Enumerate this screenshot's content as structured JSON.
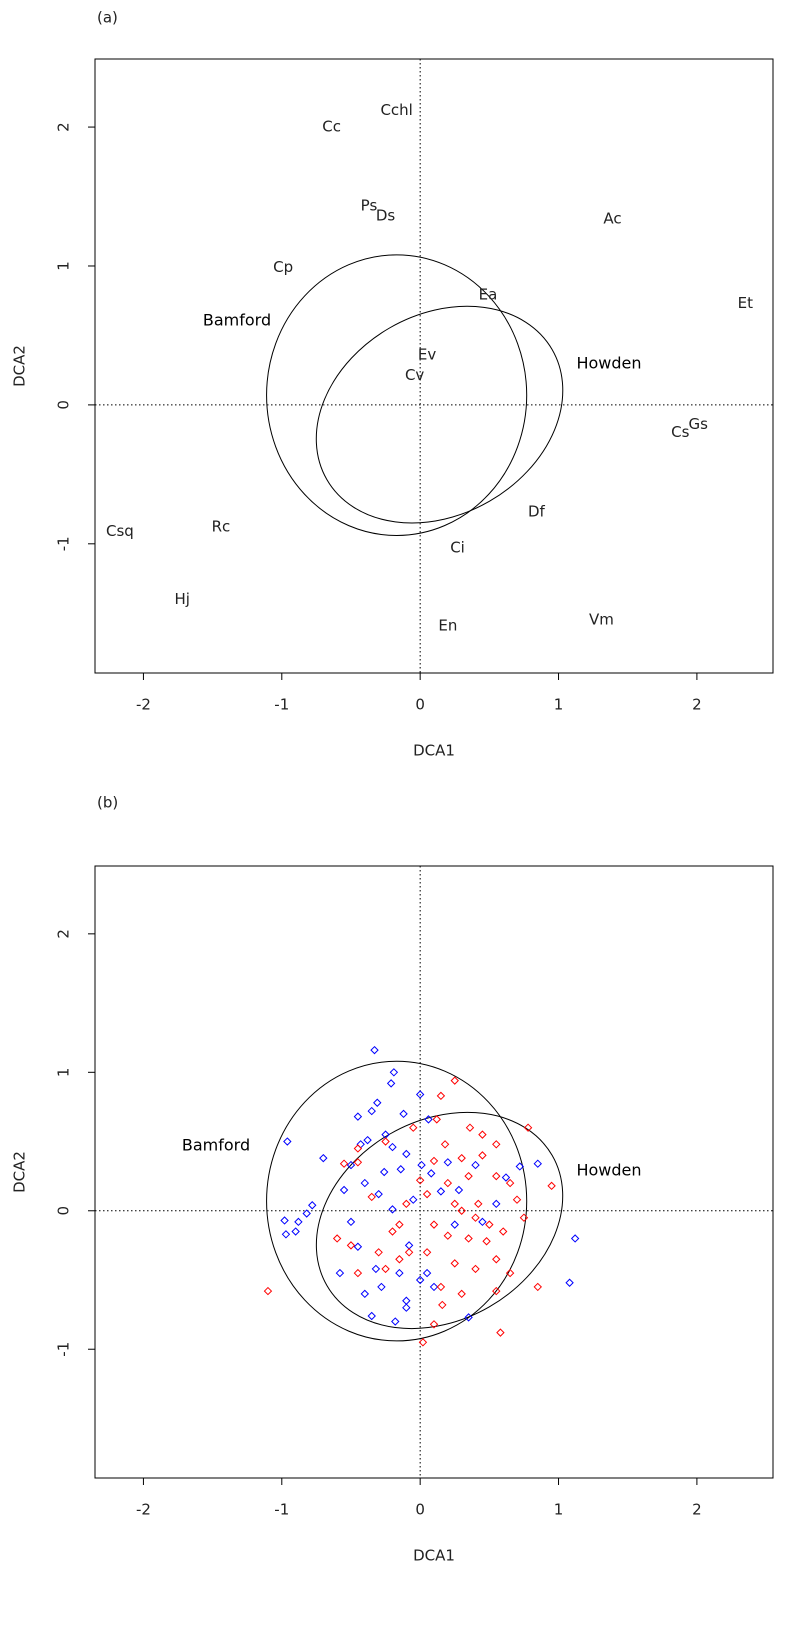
{
  "chart_data": [
    {
      "type": "text-scatter",
      "panel_label": "(a)",
      "xlabel": "DCA1",
      "ylabel": "DCA2",
      "xlim": [
        -2.35,
        2.55
      ],
      "ylim": [
        -1.93,
        2.49
      ],
      "xticks": [
        -2,
        -1,
        0,
        1,
        2
      ],
      "yticks": [
        -1,
        0,
        1,
        2
      ],
      "hline": 0,
      "vline": 0,
      "labels": [
        "Cchl",
        "Cc",
        "Ps",
        "Ds",
        "Ac",
        "Cp",
        "Ea",
        "Et",
        "Ev",
        "Cv",
        "Gs",
        "Cs",
        "Df",
        "Csq",
        "Rc",
        "Ci",
        "Hj",
        "Vm",
        "En"
      ],
      "x": [
        -0.17,
        -0.64,
        -0.37,
        -0.25,
        1.39,
        -0.99,
        0.49,
        2.35,
        0.05,
        -0.04,
        2.01,
        1.88,
        0.84,
        -2.17,
        -1.44,
        0.27,
        -1.72,
        1.31,
        0.2
      ],
      "y": [
        2.12,
        2.0,
        1.43,
        1.36,
        1.34,
        0.99,
        0.79,
        0.73,
        0.36,
        0.21,
        -0.14,
        -0.2,
        -0.77,
        -0.91,
        -0.88,
        -1.03,
        -1.4,
        -1.55,
        -1.59
      ],
      "ellipses": [
        {
          "label": "Bamford",
          "center": [
            -0.17,
            0.07
          ],
          "radii": [
            0.94,
            1.01
          ],
          "angle": 0
        },
        {
          "label": "Howden",
          "center": [
            0.14,
            -0.07
          ],
          "radii": [
            0.94,
            0.72
          ],
          "angle": 30
        }
      ]
    },
    {
      "type": "scatter",
      "panel_label": "(b)",
      "xlabel": "DCA1",
      "ylabel": "DCA2",
      "xlim": [
        -2.35,
        2.55
      ],
      "ylim": [
        -1.93,
        2.49
      ],
      "xticks": [
        -2,
        -1,
        0,
        1,
        2
      ],
      "yticks": [
        -1,
        0,
        1,
        2
      ],
      "hline": 0,
      "vline": 0,
      "series": [
        {
          "color": "#0000ff",
          "x": [
            -0.33,
            -0.19,
            -0.21,
            0,
            -0.31,
            -0.12,
            -0.45,
            -0.35,
            0.06,
            -0.38,
            -0.43,
            -0.2,
            -0.1,
            0.01,
            -0.96,
            -0.7,
            -0.5,
            -0.26,
            -0.14,
            0.08,
            -0.55,
            -0.4,
            -0.3,
            -0.78,
            -0.82,
            -0.88,
            -0.98,
            -0.97,
            -0.9,
            -0.5,
            -0.2,
            -0.05,
            0.15,
            0.28,
            0.4,
            0.62,
            0.72,
            0.85,
            0.55,
            0.45,
            1.12,
            1.08,
            -0.45,
            -0.32,
            -0.28,
            -0.15,
            0,
            0.05,
            0.1,
            -0.1,
            -0.35,
            -0.18,
            -0.1,
            0.35,
            0.25,
            -0.58,
            -0.4,
            0.2,
            -0.25,
            -0.08
          ],
          "y": [
            1.16,
            1,
            0.92,
            0.84,
            0.78,
            0.7,
            0.68,
            0.72,
            0.66,
            0.51,
            0.48,
            0.46,
            0.41,
            0.33,
            0.5,
            0.38,
            0.33,
            0.28,
            0.3,
            0.27,
            0.15,
            0.2,
            0.12,
            0.04,
            -0.02,
            -0.08,
            -0.07,
            -0.17,
            -0.15,
            -0.08,
            0.01,
            0.08,
            0.14,
            0.15,
            0.33,
            0.24,
            0.32,
            0.34,
            0.05,
            -0.08,
            -0.2,
            -0.52,
            -0.26,
            -0.42,
            -0.55,
            -0.45,
            -0.5,
            -0.45,
            -0.55,
            -0.65,
            -0.76,
            -0.8,
            -0.7,
            -0.77,
            -0.1,
            -0.45,
            -0.6,
            0.35,
            0.55,
            -0.25
          ]
        },
        {
          "color": "#ff0000",
          "x": [
            0.25,
            0.15,
            0.12,
            -0.05,
            -0.25,
            -0.45,
            0.36,
            0.45,
            0.55,
            0.78,
            0.3,
            0.18,
            0.45,
            0.1,
            -0.45,
            -0.55,
            0,
            0.2,
            0.35,
            0.55,
            0.65,
            0.95,
            0.7,
            0.42,
            0.3,
            -0.1,
            -0.35,
            -0.15,
            0.1,
            0.2,
            0.35,
            0.48,
            0.6,
            0.75,
            0.55,
            0.4,
            0.25,
            0.05,
            -0.15,
            -0.3,
            -0.5,
            -0.45,
            -0.25,
            0.15,
            0.3,
            0.55,
            0.85,
            0.58,
            0.16,
            0.02,
            -0.08,
            -1.1,
            -0.6,
            0.25,
            0.1,
            0.4,
            0.65,
            -0.2,
            0.05,
            0.5
          ],
          "y": [
            0.94,
            0.83,
            0.66,
            0.6,
            0.5,
            0.45,
            0.6,
            0.55,
            0.48,
            0.6,
            0.38,
            0.48,
            0.4,
            0.36,
            0.35,
            0.34,
            0.22,
            0.2,
            0.25,
            0.25,
            0.2,
            0.18,
            0.08,
            0.05,
            0,
            0.05,
            0.1,
            -0.1,
            -0.1,
            -0.18,
            -0.2,
            -0.22,
            -0.15,
            -0.05,
            -0.35,
            -0.42,
            -0.38,
            -0.3,
            -0.35,
            -0.3,
            -0.25,
            -0.45,
            -0.42,
            -0.55,
            -0.6,
            -0.58,
            -0.55,
            -0.88,
            -0.68,
            -0.95,
            -0.3,
            -0.58,
            -0.2,
            0.05,
            -0.82,
            -0.05,
            -0.45,
            -0.15,
            0.12,
            -0.1
          ]
        }
      ],
      "ellipses": [
        {
          "label": "Bamford",
          "center": [
            -0.17,
            0.07
          ],
          "radii": [
            0.94,
            1.01
          ],
          "angle": 0
        },
        {
          "label": "Howden",
          "center": [
            0.14,
            -0.07
          ],
          "radii": [
            0.94,
            0.72
          ],
          "angle": 30
        }
      ]
    }
  ]
}
